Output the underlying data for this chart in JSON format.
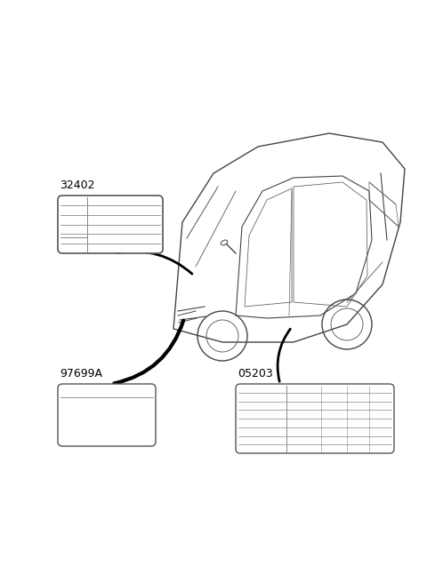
{
  "bg_color": "#ffffff",
  "label_32402": "32402",
  "label_97699A": "97699A",
  "label_05203": "05203",
  "label_color": "#000000",
  "box_edge_color": "#555555",
  "box_line_color": "#888888",
  "line_color": "#000000"
}
